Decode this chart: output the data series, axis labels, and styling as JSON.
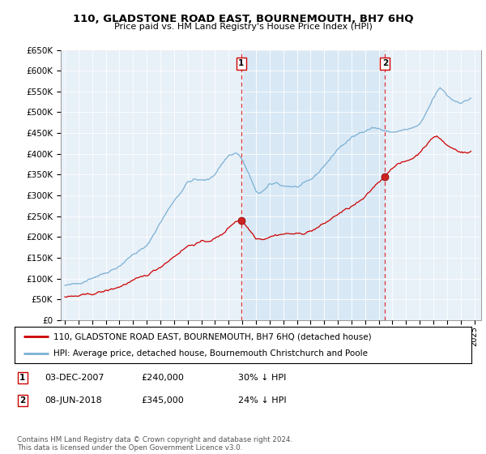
{
  "title": "110, GLADSTONE ROAD EAST, BOURNEMOUTH, BH7 6HQ",
  "subtitle": "Price paid vs. HM Land Registry's House Price Index (HPI)",
  "hpi_color": "#7ab0d4",
  "price_color": "#cc0000",
  "shade_color": "#d8e8f5",
  "bg_color": "#e8f0f8",
  "ylim": [
    0,
    650000
  ],
  "yticks": [
    0,
    50000,
    100000,
    150000,
    200000,
    250000,
    300000,
    350000,
    400000,
    450000,
    500000,
    550000,
    600000,
    650000
  ],
  "ytick_labels": [
    "£0",
    "£50K",
    "£100K",
    "£150K",
    "£200K",
    "£250K",
    "£300K",
    "£350K",
    "£400K",
    "£450K",
    "£500K",
    "£550K",
    "£600K",
    "£650K"
  ],
  "sale1_x": 2007.917,
  "sale1_y": 240000,
  "sale1_label": "1",
  "sale2_x": 2018.458,
  "sale2_y": 345000,
  "sale2_label": "2",
  "legend_line1": "110, GLADSTONE ROAD EAST, BOURNEMOUTH, BH7 6HQ (detached house)",
  "legend_line2": "HPI: Average price, detached house, Bournemouth Christchurch and Poole",
  "footer": "Contains HM Land Registry data © Crown copyright and database right 2024.\nThis data is licensed under the Open Government Licence v3.0.",
  "xmin": 1994.7,
  "xmax": 2025.5
}
